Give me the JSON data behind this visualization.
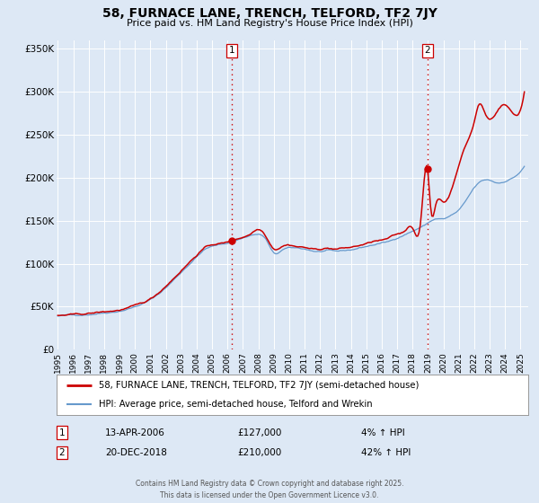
{
  "title": "58, FURNACE LANE, TRENCH, TELFORD, TF2 7JY",
  "subtitle": "Price paid vs. HM Land Registry's House Price Index (HPI)",
  "background_color": "#dde8f5",
  "plot_bg_color": "#dde8f5",
  "line1_color": "#cc0000",
  "line2_color": "#6699cc",
  "line1_label": "58, FURNACE LANE, TRENCH, TELFORD, TF2 7JY (semi-detached house)",
  "line2_label": "HPI: Average price, semi-detached house, Telford and Wrekin",
  "vline_color": "#cc0000",
  "marker1_date": 2006.28,
  "marker1_price": 127000,
  "marker1_label": "1",
  "marker2_date": 2018.97,
  "marker2_price": 210000,
  "marker2_label": "2",
  "annotation1_date": "13-APR-2006",
  "annotation1_price": "£127,000",
  "annotation1_pct": "4% ↑ HPI",
  "annotation2_date": "20-DEC-2018",
  "annotation2_price": "£210,000",
  "annotation2_pct": "42% ↑ HPI",
  "ylim": [
    0,
    360000
  ],
  "yticks": [
    0,
    50000,
    100000,
    150000,
    200000,
    250000,
    300000,
    350000
  ],
  "ytick_labels": [
    "£0",
    "£50K",
    "£100K",
    "£150K",
    "£200K",
    "£250K",
    "£300K",
    "£350K"
  ],
  "footer_line1": "Contains HM Land Registry data © Crown copyright and database right 2025.",
  "footer_line2": "This data is licensed under the Open Government Licence v3.0."
}
